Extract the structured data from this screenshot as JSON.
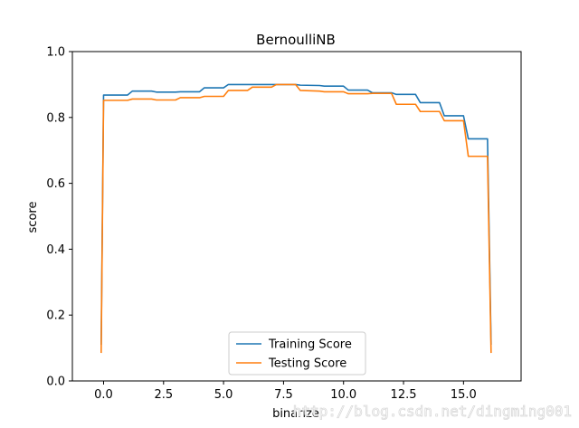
{
  "chart_data": {
    "type": "line",
    "title": "BernoulliNB",
    "xlabel": "binarize",
    "ylabel": "score",
    "xlim": [
      -1.3,
      17.4
    ],
    "ylim": [
      0.0,
      1.0
    ],
    "xticks": [
      0.0,
      2.5,
      5.0,
      7.5,
      10.0,
      12.5,
      15.0
    ],
    "xtick_labels": [
      "0.0",
      "2.5",
      "5.0",
      "7.5",
      "10.0",
      "12.5",
      "15.0"
    ],
    "yticks": [
      0.0,
      0.2,
      0.4,
      0.6,
      0.8,
      1.0
    ],
    "ytick_labels": [
      "0.0",
      "0.2",
      "0.4",
      "0.6",
      "0.8",
      "1.0"
    ],
    "grid": false,
    "legend_position": "lower center",
    "series": [
      {
        "name": "Training Score",
        "color": "#1f77b4",
        "points": [
          [
            -0.1,
            0.11
          ],
          [
            0.0,
            0.868
          ],
          [
            1.0,
            0.868
          ],
          [
            1.2,
            0.88
          ],
          [
            2.0,
            0.88
          ],
          [
            2.2,
            0.877
          ],
          [
            3.0,
            0.877
          ],
          [
            3.2,
            0.878
          ],
          [
            4.0,
            0.878
          ],
          [
            4.2,
            0.89
          ],
          [
            5.0,
            0.89
          ],
          [
            5.2,
            0.9
          ],
          [
            6.0,
            0.9
          ],
          [
            6.2,
            0.9
          ],
          [
            7.0,
            0.9
          ],
          [
            7.2,
            0.9
          ],
          [
            8.0,
            0.9
          ],
          [
            8.2,
            0.898
          ],
          [
            9.0,
            0.897
          ],
          [
            9.2,
            0.895
          ],
          [
            10.0,
            0.895
          ],
          [
            10.2,
            0.883
          ],
          [
            11.0,
            0.883
          ],
          [
            11.2,
            0.875
          ],
          [
            12.0,
            0.875
          ],
          [
            12.2,
            0.87
          ],
          [
            13.0,
            0.87
          ],
          [
            13.2,
            0.845
          ],
          [
            14.0,
            0.845
          ],
          [
            14.2,
            0.805
          ],
          [
            15.0,
            0.805
          ],
          [
            15.2,
            0.735
          ],
          [
            16.0,
            0.735
          ],
          [
            16.15,
            0.11
          ]
        ]
      },
      {
        "name": "Testing Score",
        "color": "#ff7f0e",
        "points": [
          [
            -0.1,
            0.085
          ],
          [
            0.0,
            0.852
          ],
          [
            1.0,
            0.852
          ],
          [
            1.2,
            0.856
          ],
          [
            2.0,
            0.856
          ],
          [
            2.2,
            0.853
          ],
          [
            3.0,
            0.853
          ],
          [
            3.2,
            0.86
          ],
          [
            4.0,
            0.86
          ],
          [
            4.2,
            0.864
          ],
          [
            5.0,
            0.864
          ],
          [
            5.2,
            0.882
          ],
          [
            6.0,
            0.882
          ],
          [
            6.2,
            0.892
          ],
          [
            7.0,
            0.892
          ],
          [
            7.2,
            0.9
          ],
          [
            8.0,
            0.9
          ],
          [
            8.2,
            0.882
          ],
          [
            9.0,
            0.88
          ],
          [
            9.2,
            0.878
          ],
          [
            10.0,
            0.878
          ],
          [
            10.2,
            0.872
          ],
          [
            11.0,
            0.872
          ],
          [
            11.2,
            0.873
          ],
          [
            12.0,
            0.873
          ],
          [
            12.2,
            0.84
          ],
          [
            13.0,
            0.84
          ],
          [
            13.2,
            0.818
          ],
          [
            14.0,
            0.818
          ],
          [
            14.2,
            0.79
          ],
          [
            15.0,
            0.79
          ],
          [
            15.2,
            0.682
          ],
          [
            16.0,
            0.682
          ],
          [
            16.15,
            0.085
          ]
        ]
      }
    ]
  },
  "watermark": "http://blog.csdn.net/dingming001"
}
